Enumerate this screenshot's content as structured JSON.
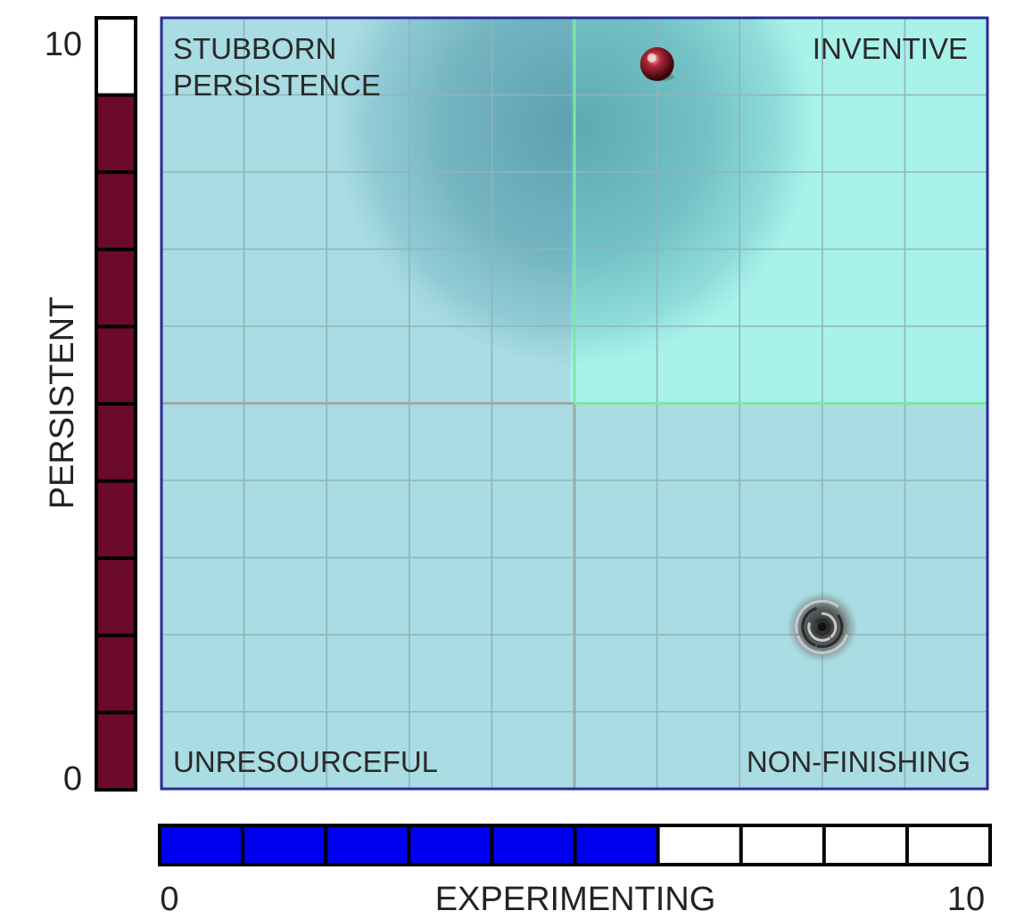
{
  "chart_data": {
    "type": "scatter",
    "xlabel": "EXPERIMENTING",
    "ylabel": "PERSISTENT",
    "xlim": [
      0,
      10
    ],
    "ylim": [
      0,
      10
    ],
    "x_tick_labels": [
      "0",
      "10"
    ],
    "y_tick_labels": [
      "0",
      "10"
    ],
    "grid": true,
    "grid_divisions": 10,
    "quadrant_labels": {
      "top_left": [
        "STUBBORN",
        "PERSISTENCE"
      ],
      "top_right": "INVENTIVE",
      "bottom_left": "UNRESOURCEFUL",
      "bottom_right": "NON-FINISHING"
    },
    "highlighted_quadrant": "top-right",
    "x_meter": {
      "value": 6,
      "max": 10,
      "color": "#0000f0"
    },
    "y_meter": {
      "value": 9,
      "max": 10,
      "color": "#6b0a2a"
    },
    "points": [
      {
        "kind": "ball",
        "x": 6,
        "y": 9.4,
        "color": "#8a1020"
      },
      {
        "kind": "swirl",
        "x": 8,
        "y": 2.1,
        "color": "#444444"
      }
    ],
    "halo": {
      "x": 5,
      "y": 8.6,
      "color": "#1f6f84"
    },
    "colors": {
      "plot_bg": "#a9dce3",
      "highlight_bg": "#a8f2ea",
      "grid": "#8fb4bd",
      "frame": "#2a2a9a",
      "quadrant_line": "#9ea9ad",
      "quadrant_line_highlight": "#7ee6a6"
    }
  }
}
